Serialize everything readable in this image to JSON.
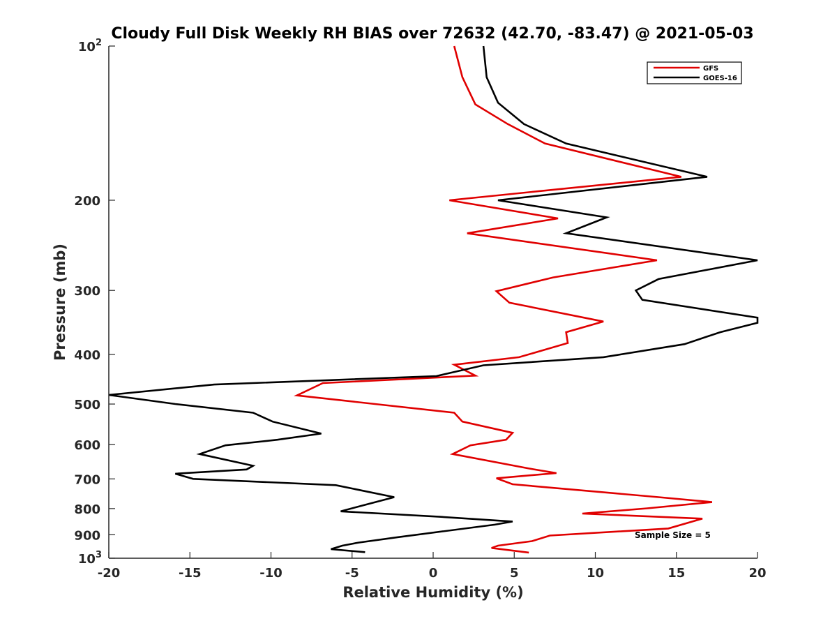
{
  "chart_data": {
    "type": "line",
    "title": "Cloudy Full Disk Weekly RH BIAS over 72632 (42.70, -83.47) @ 2021-05-03",
    "xlabel": "Relative Humidity (%)",
    "ylabel": "Pressure (mb)",
    "xlim": [
      -20,
      20
    ],
    "ylim": [
      100,
      1000
    ],
    "y_scale": "log",
    "y_reversed": true,
    "grid": false,
    "legend_position": "top-right",
    "x_ticks": [
      -20,
      -15,
      -10,
      -5,
      0,
      5,
      10,
      15,
      20
    ],
    "x_tick_labels": [
      "-20",
      "-15",
      "-10",
      "-5",
      "0",
      "5",
      "10",
      "15",
      "20"
    ],
    "y_ticks": [
      200,
      300,
      400,
      500,
      600,
      700,
      800,
      900
    ],
    "y_tick_labels": [
      "200",
      "300",
      "400",
      "500",
      "600",
      "700",
      "800",
      "900"
    ],
    "y_ticks_power": [
      {
        "value": 100,
        "base": "10",
        "exp": "2"
      },
      {
        "value": 1000,
        "base": "10",
        "exp": "3"
      }
    ],
    "annotation": "Sample Size = 5",
    "series": [
      {
        "name": "GFS",
        "color": "#e00000",
        "points": [
          [
            1.3,
            100
          ],
          [
            1.8,
            115
          ],
          [
            2.6,
            130
          ],
          [
            4.6,
            142
          ],
          [
            6.9,
            155
          ],
          [
            15.3,
            180
          ],
          [
            1.0,
            200
          ],
          [
            7.7,
            217
          ],
          [
            2.1,
            232
          ],
          [
            13.8,
            262
          ],
          [
            7.4,
            283
          ],
          [
            3.9,
            301
          ],
          [
            4.7,
            317
          ],
          [
            10.5,
            345
          ],
          [
            8.2,
            362
          ],
          [
            8.3,
            380
          ],
          [
            5.3,
            405
          ],
          [
            1.3,
            419
          ],
          [
            2.6,
            440
          ],
          [
            -6.8,
            455
          ],
          [
            -8.4,
            481
          ],
          [
            1.3,
            520
          ],
          [
            1.8,
            541
          ],
          [
            4.9,
            569
          ],
          [
            4.5,
            587
          ],
          [
            2.3,
            602
          ],
          [
            1.2,
            626
          ],
          [
            5.9,
            668
          ],
          [
            7.6,
            682
          ],
          [
            3.9,
            698
          ],
          [
            4.9,
            717
          ],
          [
            13.9,
            760
          ],
          [
            17.2,
            777
          ],
          [
            13.2,
            799
          ],
          [
            9.2,
            818
          ],
          [
            16.6,
            837
          ],
          [
            14.5,
            875
          ],
          [
            7.2,
            903
          ],
          [
            6.1,
            926
          ],
          [
            4.0,
            945
          ],
          [
            3.6,
            955
          ],
          [
            5.9,
            975
          ]
        ]
      },
      {
        "name": "GOES-16",
        "color": "#000000",
        "points": [
          [
            3.1,
            100
          ],
          [
            3.3,
            115
          ],
          [
            4.0,
            129
          ],
          [
            5.6,
            142
          ],
          [
            8.2,
            155
          ],
          [
            16.9,
            180
          ],
          [
            4.0,
            200
          ],
          [
            10.7,
            216
          ],
          [
            8.2,
            232
          ],
          [
            20.0,
            262
          ],
          [
            13.9,
            285
          ],
          [
            12.5,
            300
          ],
          [
            12.9,
            313
          ],
          [
            20.0,
            339
          ],
          [
            20.0,
            347
          ],
          [
            17.7,
            362
          ],
          [
            15.5,
            382
          ],
          [
            10.5,
            405
          ],
          [
            3.1,
            420
          ],
          [
            0.2,
            441
          ],
          [
            -13.5,
            458
          ],
          [
            -20.0,
            480
          ],
          [
            -15.9,
            500
          ],
          [
            -11.1,
            520
          ],
          [
            -9.9,
            541
          ],
          [
            -6.9,
            571
          ],
          [
            -9.6,
            587
          ],
          [
            -12.8,
            602
          ],
          [
            -14.4,
            626
          ],
          [
            -11.1,
            660
          ],
          [
            -11.5,
            671
          ],
          [
            -15.9,
            684
          ],
          [
            -14.8,
            700
          ],
          [
            -6.0,
            720
          ],
          [
            -2.4,
            760
          ],
          [
            -4.3,
            788
          ],
          [
            -5.7,
            810
          ],
          [
            0.4,
            830
          ],
          [
            4.9,
            848
          ],
          [
            3.8,
            860
          ],
          [
            -2.2,
            910
          ],
          [
            -4.6,
            932
          ],
          [
            -5.6,
            945
          ],
          [
            -6.3,
            960
          ],
          [
            -4.2,
            973
          ]
        ]
      }
    ]
  }
}
